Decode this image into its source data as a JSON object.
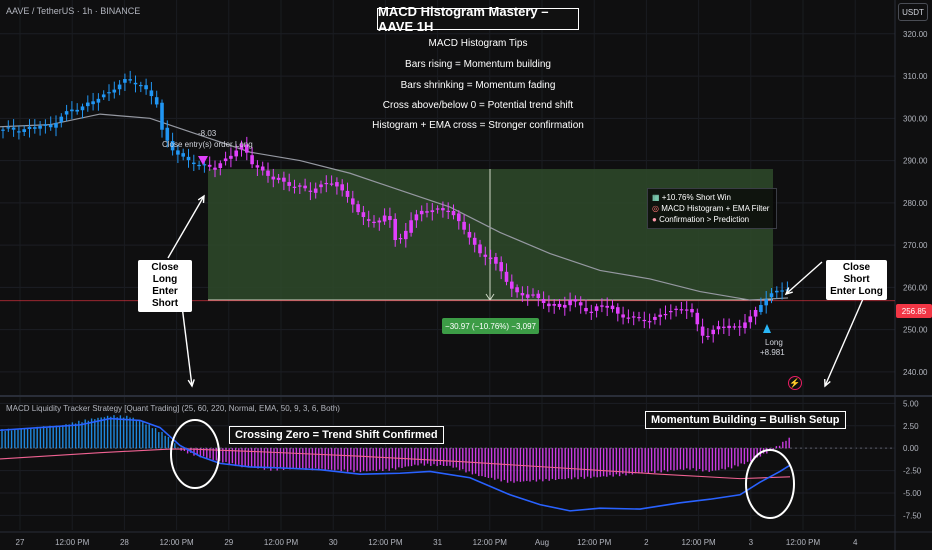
{
  "header": {
    "symbol": "AAVE / TetherUS · 1h · BINANCE",
    "currency": "USDT",
    "title": "MACD Histogram Mastery – AAVE 1H"
  },
  "tips": {
    "heading": "MACD Histogram Tips",
    "items": [
      "Bars rising = Momentum building",
      "Bars shrinking = Momentum fading",
      "Cross above/below 0 = Potential trend shift",
      "Histogram + EMA cross = Stronger confirmation"
    ]
  },
  "annotations": {
    "close_long": "Close Long\nEnter Short",
    "close_short": "Close Short\nEnter Long",
    "exit_value": "-8.03",
    "exit_order": "Close entry(s) order Long",
    "long_label": "Long",
    "long_value": "+8.981",
    "crossing_zero": "Crossing Zero = Trend Shift Confirmed",
    "momentum_building": "Momentum Building = Bullish Setup",
    "range_measure": "−30.97 (−10.76%) −3,097",
    "win_lines": [
      "+10.76% Short Win",
      "MACD Histogram + EMA Filter",
      "Confirmation > Prediction"
    ],
    "last_price": "256.85"
  },
  "indicator": {
    "name": "MACD Liquidity Tracker Strategy [Quant Trading] (25, 60, 220, Normal, EMA, 50, 9, 3, 6, Both)"
  },
  "colors": {
    "bull": "#2196f3",
    "bear": "#e040fb",
    "ema": "#9598a1",
    "signal": "#f06292",
    "macd": "#2962ff",
    "zone": "#2e4a2a",
    "last": "#f23645"
  },
  "chart_data": [
    {
      "type": "candlestick",
      "y_axis": {
        "ticks": [
          240,
          250,
          260,
          270,
          280,
          290,
          300,
          310,
          320
        ],
        "range": [
          235,
          328
        ]
      },
      "x_axis": {
        "labels": [
          "27",
          "12:00 PM",
          "28",
          "12:00 PM",
          "29",
          "12:00 PM",
          "30",
          "12:00 PM",
          "31",
          "12:00 PM",
          "Aug",
          "12:00 PM",
          "2",
          "12:00 PM",
          "3",
          "12:00 PM",
          "4"
        ]
      },
      "price_path": [
        [
          0,
          297
        ],
        [
          10,
          297.5
        ],
        [
          20,
          297
        ],
        [
          30,
          298
        ],
        [
          40,
          298.5
        ],
        [
          50,
          297.5
        ],
        [
          60,
          300
        ],
        [
          70,
          302
        ],
        [
          80,
          302.5
        ],
        [
          90,
          304
        ],
        [
          100,
          305
        ],
        [
          110,
          306
        ],
        [
          120,
          308
        ],
        [
          125,
          309
        ],
        [
          130,
          309
        ],
        [
          140,
          308
        ],
        [
          150,
          306
        ],
        [
          158,
          303
        ],
        [
          162,
          297
        ],
        [
          170,
          293
        ],
        [
          180,
          291
        ],
        [
          190,
          290
        ],
        [
          200,
          289
        ],
        [
          207,
          289
        ],
        [
          215,
          288
        ],
        [
          225,
          290
        ],
        [
          235,
          292
        ],
        [
          240,
          294
        ],
        [
          245,
          293
        ],
        [
          250,
          290
        ],
        [
          260,
          288
        ],
        [
          270,
          286
        ],
        [
          280,
          285
        ],
        [
          290,
          284
        ],
        [
          300,
          284
        ],
        [
          310,
          283
        ],
        [
          320,
          284
        ],
        [
          330,
          285
        ],
        [
          340,
          283
        ],
        [
          350,
          281
        ],
        [
          360,
          277
        ],
        [
          370,
          276
        ],
        [
          380,
          275
        ],
        [
          385,
          277
        ],
        [
          390,
          276
        ],
        [
          395,
          271
        ],
        [
          400,
          271
        ],
        [
          405,
          273
        ],
        [
          410,
          276
        ],
        [
          420,
          278
        ],
        [
          430,
          278.5
        ],
        [
          440,
          278
        ],
        [
          450,
          278
        ],
        [
          460,
          275
        ],
        [
          470,
          272
        ],
        [
          480,
          268
        ],
        [
          490,
          267
        ],
        [
          500,
          264
        ],
        [
          510,
          260
        ],
        [
          520,
          258
        ],
        [
          530,
          259
        ],
        [
          540,
          257
        ],
        [
          550,
          255.5
        ],
        [
          560,
          255
        ],
        [
          570,
          257
        ],
        [
          580,
          256
        ],
        [
          590,
          254
        ],
        [
          600,
          256
        ],
        [
          610,
          255
        ],
        [
          620,
          253
        ],
        [
          630,
          253
        ],
        [
          640,
          253
        ],
        [
          650,
          252
        ],
        [
          660,
          253.5
        ],
        [
          670,
          254
        ],
        [
          680,
          255
        ],
        [
          690,
          255
        ],
        [
          700,
          250
        ],
        [
          705,
          248
        ],
        [
          710,
          249
        ],
        [
          715,
          250
        ],
        [
          720,
          251
        ],
        [
          730,
          250
        ],
        [
          740,
          251
        ],
        [
          750,
          253
        ],
        [
          760,
          256
        ],
        [
          770,
          258
        ],
        [
          780,
          259.5
        ],
        [
          788,
          259
        ]
      ],
      "ema": [
        [
          0,
          298
        ],
        [
          50,
          298.5
        ],
        [
          100,
          301
        ],
        [
          150,
          300
        ],
        [
          200,
          296
        ],
        [
          250,
          292
        ],
        [
          300,
          290
        ],
        [
          350,
          287
        ],
        [
          400,
          283
        ],
        [
          450,
          279
        ],
        [
          500,
          273
        ],
        [
          550,
          268
        ],
        [
          600,
          264
        ],
        [
          650,
          262
        ],
        [
          700,
          259
        ],
        [
          750,
          257
        ],
        [
          788,
          257.5
        ]
      ],
      "short_zone": {
        "top": 288,
        "bottom": 257
      },
      "last_price": 256.85
    },
    {
      "type": "histogram",
      "y_axis": {
        "ticks": [
          5,
          2.5,
          0,
          -2.5,
          -5,
          -7.5
        ],
        "range": [
          -8.8,
          5.6
        ]
      },
      "histogram": [
        [
          0,
          2
        ],
        [
          30,
          2.2
        ],
        [
          60,
          2.5
        ],
        [
          90,
          3.2
        ],
        [
          110,
          3.6
        ],
        [
          130,
          3.5
        ],
        [
          150,
          2.5
        ],
        [
          165,
          1.5
        ],
        [
          175,
          0.5
        ],
        [
          180,
          -0.2
        ],
        [
          190,
          -0.6
        ],
        [
          210,
          -1.2
        ],
        [
          240,
          -2
        ],
        [
          270,
          -2.4
        ],
        [
          300,
          -2.3
        ],
        [
          330,
          -2.4
        ],
        [
          360,
          -2.6
        ],
        [
          390,
          -2.4
        ],
        [
          420,
          -1.8
        ],
        [
          450,
          -2
        ],
        [
          480,
          -3.1
        ],
        [
          510,
          -3.8
        ],
        [
          540,
          -3.6
        ],
        [
          570,
          -3.4
        ],
        [
          600,
          -3.2
        ],
        [
          630,
          -2.9
        ],
        [
          660,
          -2.6
        ],
        [
          690,
          -2.3
        ],
        [
          710,
          -2.6
        ],
        [
          730,
          -2.2
        ],
        [
          750,
          -1.5
        ],
        [
          765,
          -0.6
        ],
        [
          775,
          0
        ],
        [
          780,
          0.4
        ],
        [
          790,
          1.2
        ]
      ],
      "macd_line": [
        [
          0,
          2
        ],
        [
          40,
          2.3
        ],
        [
          80,
          2.6
        ],
        [
          110,
          3.3
        ],
        [
          140,
          3.1
        ],
        [
          160,
          2.3
        ],
        [
          180,
          0.3
        ],
        [
          200,
          -0.9
        ],
        [
          220,
          -1.7
        ],
        [
          250,
          -2.1
        ],
        [
          280,
          -2.2
        ],
        [
          320,
          -2.4
        ],
        [
          360,
          -2.9
        ],
        [
          400,
          -2.8
        ],
        [
          430,
          -2.6
        ],
        [
          470,
          -3.3
        ],
        [
          510,
          -5.2
        ],
        [
          540,
          -6.3
        ],
        [
          570,
          -7
        ],
        [
          600,
          -6.7
        ],
        [
          640,
          -6.8
        ],
        [
          680,
          -6.1
        ],
        [
          710,
          -5.7
        ],
        [
          740,
          -5.2
        ],
        [
          760,
          -3.8
        ],
        [
          780,
          -2.6
        ],
        [
          790,
          -1.9
        ]
      ],
      "signal_line": [
        [
          0,
          -1.2
        ],
        [
          100,
          -0.5
        ],
        [
          170,
          -0.1
        ],
        [
          190,
          -0.1
        ],
        [
          260,
          -0.4
        ],
        [
          360,
          -0.9
        ],
        [
          460,
          -1.5
        ],
        [
          560,
          -2.2
        ],
        [
          660,
          -2.9
        ],
        [
          740,
          -3.4
        ],
        [
          790,
          -3.2
        ]
      ]
    }
  ]
}
